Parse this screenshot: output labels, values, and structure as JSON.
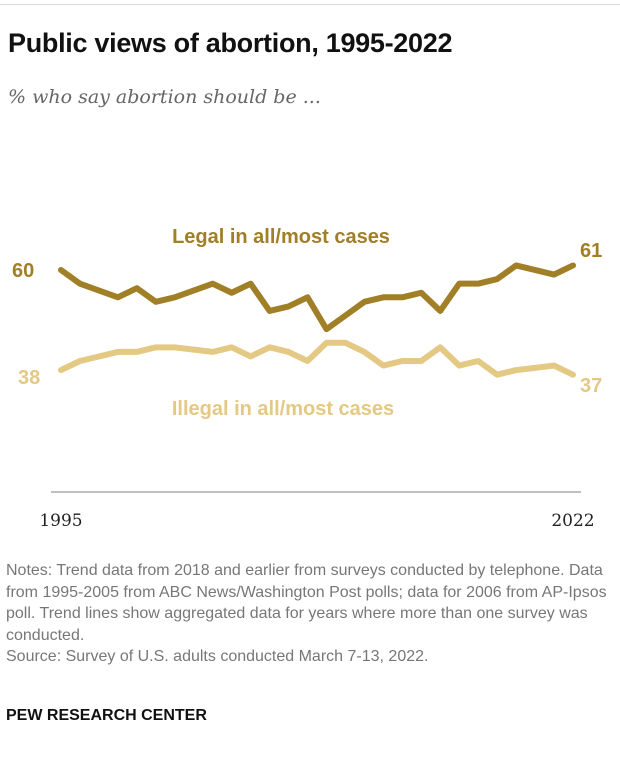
{
  "title": "Public views of abortion, 1995-2022",
  "subtitle": "% who say abortion should be ...",
  "notes": [
    "Notes: Trend data from 2018 and earlier from surveys conducted by telephone. Data from 1995-2005 from ABC News/Washington Post polls; data for 2006 from AP-Ipsos poll. Trend lines show aggregated data for years where more than one survey was conducted.",
    "Source: Survey of U.S. adults conducted March 7-13, 2022."
  ],
  "brand": "PEW RESEARCH CENTER",
  "chart_data": {
    "type": "line",
    "x": [
      1995,
      1996,
      1998,
      1999,
      2000,
      2001,
      2003,
      2004,
      2005,
      2006,
      2007,
      2008,
      2009,
      2010,
      2011,
      2012,
      2013,
      2014,
      2015,
      2016,
      2017,
      2018,
      2019,
      2021,
      2022
    ],
    "series": [
      {
        "name": "Legal in all/most cases",
        "color": "#A07F26",
        "values": [
          60,
          57,
          54,
          56,
          53,
          54,
          57,
          55,
          57,
          51,
          52,
          54,
          47,
          50,
          53,
          54,
          54,
          55,
          51,
          57,
          57,
          58,
          61,
          59,
          61
        ],
        "start_label": "60",
        "end_label": "61"
      },
      {
        "name": "Illegal in all/most cases",
        "color": "#E3C983",
        "values": [
          38,
          40,
          42,
          42,
          43,
          43,
          42,
          43,
          41,
          43,
          42,
          40,
          44,
          44,
          42,
          39,
          40,
          40,
          43,
          39,
          40,
          37,
          38,
          39,
          37
        ],
        "start_label": "38",
        "end_label": "37"
      }
    ],
    "x_tick_labels": [
      "1995",
      "2022"
    ],
    "xlim": [
      1995,
      2022
    ],
    "grid": false,
    "legend": "inline labels"
  }
}
